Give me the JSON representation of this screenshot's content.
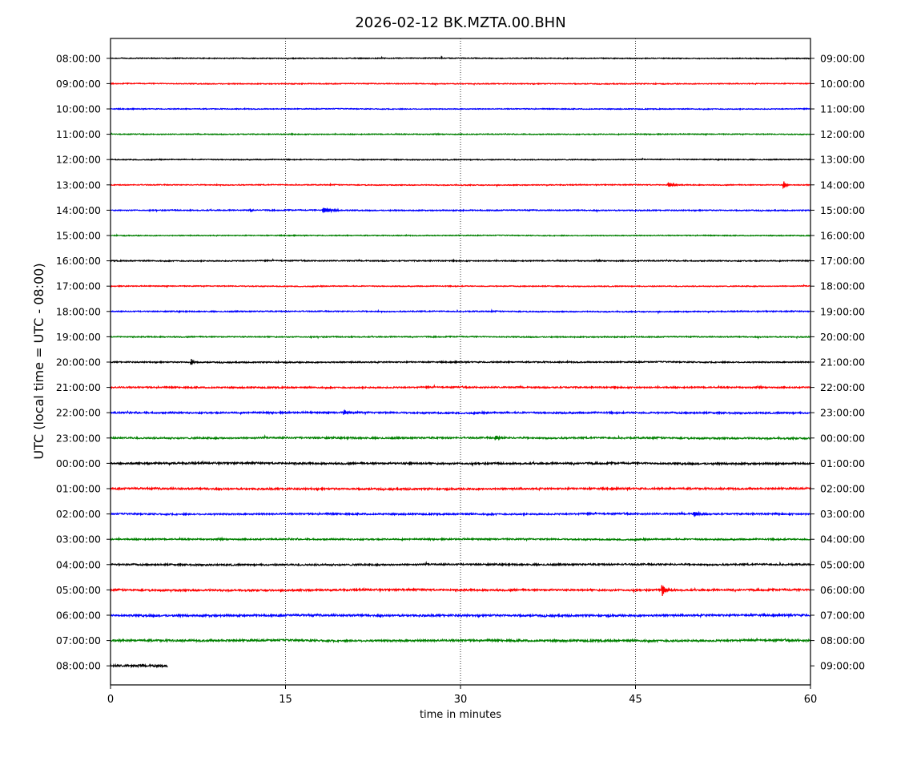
{
  "chart_data": {
    "type": "line",
    "title": "2026-02-12 BK.MZTA.00.BHN",
    "xlabel": "time in minutes",
    "ylabel": "UTC (local time = UTC - 08:00)",
    "xlim": [
      0,
      60
    ],
    "x_ticks": [
      0,
      15,
      30,
      45,
      60
    ],
    "x_gridlines": [
      15,
      30,
      45
    ],
    "grid": "vertical dotted",
    "trace_colors": [
      "#000000",
      "#ff0000",
      "#0000ff",
      "#008000"
    ],
    "left_labels": [
      "08:00:00",
      "09:00:00",
      "10:00:00",
      "11:00:00",
      "12:00:00",
      "13:00:00",
      "14:00:00",
      "15:00:00",
      "16:00:00",
      "17:00:00",
      "18:00:00",
      "19:00:00",
      "20:00:00",
      "21:00:00",
      "22:00:00",
      "23:00:00",
      "00:00:00",
      "01:00:00",
      "02:00:00",
      "03:00:00",
      "04:00:00",
      "05:00:00",
      "06:00:00",
      "07:00:00",
      "08:00:00"
    ],
    "right_labels": [
      "09:00:00",
      "10:00:00",
      "11:00:00",
      "12:00:00",
      "13:00:00",
      "14:00:00",
      "15:00:00",
      "16:00:00",
      "17:00:00",
      "18:00:00",
      "19:00:00",
      "20:00:00",
      "21:00:00",
      "22:00:00",
      "23:00:00",
      "00:00:00",
      "01:00:00",
      "02:00:00",
      "03:00:00",
      "04:00:00",
      "05:00:00",
      "06:00:00",
      "07:00:00",
      "08:00:00",
      "09:00:00"
    ],
    "traces": [
      {
        "end_minute": 60,
        "noise": 0.5,
        "events": []
      },
      {
        "end_minute": 60,
        "noise": 0.5,
        "events": []
      },
      {
        "end_minute": 60,
        "noise": 0.5,
        "events": []
      },
      {
        "end_minute": 60,
        "noise": 0.5,
        "events": []
      },
      {
        "end_minute": 60,
        "noise": 0.5,
        "events": []
      },
      {
        "end_minute": 60,
        "noise": 0.5,
        "events": [
          {
            "t": 47.8,
            "amp": 2.5,
            "dur": 1.5
          },
          {
            "t": 57.7,
            "amp": 5,
            "dur": 0.6
          }
        ]
      },
      {
        "end_minute": 60,
        "noise": 0.6,
        "events": [
          {
            "t": 12.0,
            "amp": 2,
            "dur": 0.6
          },
          {
            "t": 18.2,
            "amp": 3,
            "dur": 2.5
          }
        ]
      },
      {
        "end_minute": 60,
        "noise": 0.5,
        "events": []
      },
      {
        "end_minute": 60,
        "noise": 0.6,
        "events": []
      },
      {
        "end_minute": 60,
        "noise": 0.5,
        "events": []
      },
      {
        "end_minute": 60,
        "noise": 0.6,
        "events": []
      },
      {
        "end_minute": 60,
        "noise": 0.6,
        "events": []
      },
      {
        "end_minute": 60,
        "noise": 0.7,
        "events": [
          {
            "t": 6.9,
            "amp": 5,
            "dur": 0.5
          }
        ]
      },
      {
        "end_minute": 60,
        "noise": 0.8,
        "events": []
      },
      {
        "end_minute": 60,
        "noise": 0.9,
        "events": [
          {
            "t": 20.0,
            "amp": 2.5,
            "dur": 1.5
          }
        ]
      },
      {
        "end_minute": 60,
        "noise": 0.9,
        "events": [
          {
            "t": 33.0,
            "amp": 2.5,
            "dur": 1.2
          }
        ]
      },
      {
        "end_minute": 60,
        "noise": 1.0,
        "events": [
          {
            "t": 25.6,
            "amp": 2.5,
            "dur": 1
          }
        ]
      },
      {
        "end_minute": 60,
        "noise": 1.0,
        "events": []
      },
      {
        "end_minute": 60,
        "noise": 0.9,
        "events": [
          {
            "t": 50.0,
            "amp": 2.5,
            "dur": 1.5
          }
        ]
      },
      {
        "end_minute": 60,
        "noise": 0.8,
        "events": []
      },
      {
        "end_minute": 60,
        "noise": 0.9,
        "events": []
      },
      {
        "end_minute": 60,
        "noise": 1.0,
        "events": [
          {
            "t": 47.3,
            "amp": 7,
            "dur": 0.8
          }
        ]
      },
      {
        "end_minute": 60,
        "noise": 1.1,
        "events": []
      },
      {
        "end_minute": 60,
        "noise": 1.1,
        "events": []
      },
      {
        "end_minute": 4.9,
        "noise": 1.2,
        "events": []
      }
    ]
  }
}
